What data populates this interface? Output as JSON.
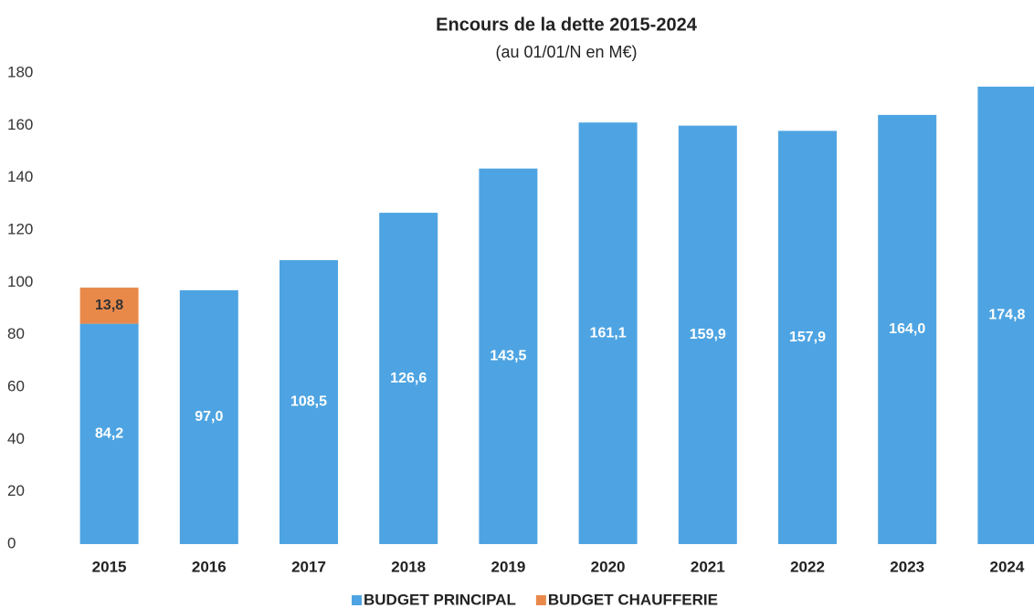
{
  "chart_data": {
    "type": "stacked_bar",
    "title": "Encours de la dette 2015-2024",
    "subtitle": "(au 01/01/N en M€)",
    "categories": [
      "2015",
      "2016",
      "2017",
      "2018",
      "2019",
      "2020",
      "2021",
      "2022",
      "2023",
      "2024"
    ],
    "series": [
      {
        "name": "BUDGET PRINCIPAL",
        "color": "#4ea4e2",
        "values": [
          84.2,
          97.0,
          108.5,
          126.6,
          143.5,
          161.1,
          159.9,
          157.9,
          164.0,
          174.8
        ],
        "value_labels": [
          "84,2",
          "97,0",
          "108,5",
          "126,6",
          "143,5",
          "161,1",
          "159,9",
          "157,9",
          "164,0",
          "174,8"
        ]
      },
      {
        "name": "BUDGET CHAUFFERIE",
        "color": "#e8894a",
        "values": [
          13.8,
          null,
          null,
          null,
          null,
          null,
          null,
          null,
          null,
          null
        ],
        "value_labels": [
          "13,8",
          null,
          null,
          null,
          null,
          null,
          null,
          null,
          null,
          null
        ]
      }
    ],
    "ylim": [
      0,
      180
    ],
    "yticks": [
      0,
      20,
      40,
      60,
      80,
      100,
      120,
      140,
      160,
      180
    ],
    "legend": "bottom"
  }
}
